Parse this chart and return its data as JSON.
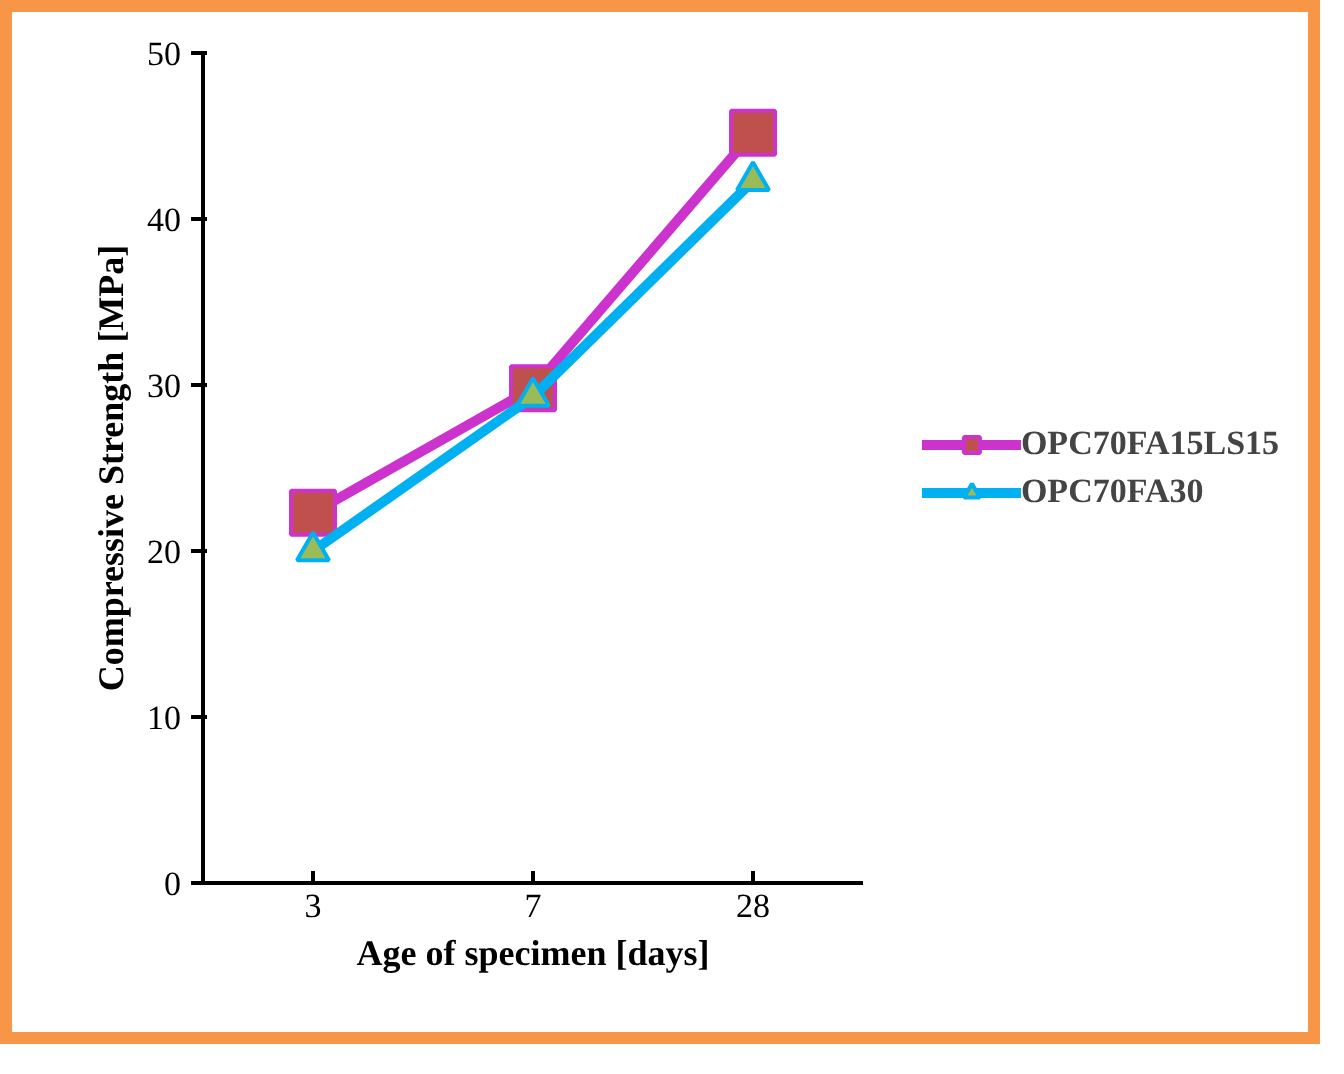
{
  "chart_data": {
    "type": "line",
    "xlabel": "Age of specimen [days]",
    "ylabel": "Compressive Strength [MPa]",
    "categories": [
      "3",
      "7",
      "28"
    ],
    "series": [
      {
        "name": "OPC70FA15LS15",
        "color": "#cc33cc",
        "marker": "square",
        "values": [
          22.3,
          29.8,
          45.2
        ]
      },
      {
        "name": "OPC70FA30",
        "color": "#00b0f0",
        "marker": "triangle",
        "values": [
          20.0,
          29.3,
          42.3
        ]
      }
    ],
    "ylim": [
      0,
      50
    ],
    "yticks": [
      0,
      10,
      20,
      30,
      40,
      50
    ],
    "grid": false,
    "legend": "right"
  }
}
